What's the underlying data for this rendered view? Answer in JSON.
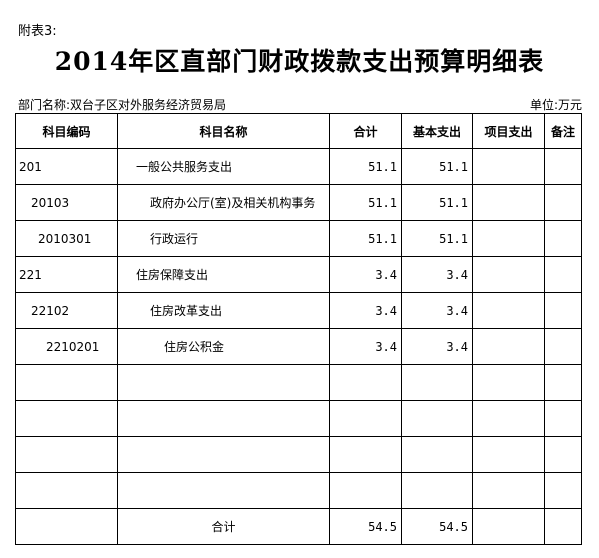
{
  "attachment_label": "附表3:",
  "title": "2014年区直部门财政拨款支出预算明细表",
  "department": "部门名称:双台子区对外服务经济贸易局",
  "unit": "单位:万元",
  "headers": {
    "code": "科目编码",
    "name": "科目名称",
    "total": "合计",
    "basic": "基本支出",
    "project": "项目支出",
    "remark": "备注"
  },
  "rows": [
    {
      "code": "201",
      "name": "一般公共服务支出",
      "total": "51.1",
      "basic": "51.1",
      "project": "",
      "remark": ""
    },
    {
      "code": "20103",
      "name": "政府办公厅(室)及相关机构事务",
      "total": "51.1",
      "basic": "51.1",
      "project": "",
      "remark": ""
    },
    {
      "code": "2010301",
      "name": "行政运行",
      "total": "51.1",
      "basic": "51.1",
      "project": "",
      "remark": ""
    },
    {
      "code": "221",
      "name": "住房保障支出",
      "total": "3.4",
      "basic": "3.4",
      "project": "",
      "remark": ""
    },
    {
      "code": "22102",
      "name": "住房改革支出",
      "total": "3.4",
      "basic": "3.4",
      "project": "",
      "remark": ""
    },
    {
      "code": "2210201",
      "name": "住房公积金",
      "total": "3.4",
      "basic": "3.4",
      "project": "",
      "remark": ""
    }
  ],
  "total_row": {
    "label": "合计",
    "total": "54.5",
    "basic": "54.5",
    "project": "",
    "remark": ""
  }
}
